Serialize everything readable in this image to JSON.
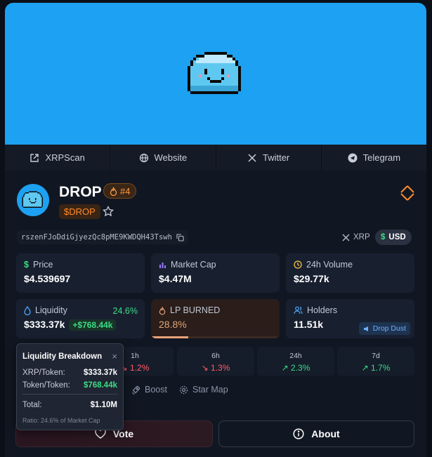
{
  "links": [
    {
      "label": "XRPScan",
      "icon": "external-link-icon"
    },
    {
      "label": "Website",
      "icon": "globe-icon"
    },
    {
      "label": "Twitter",
      "icon": "x-logo-icon"
    },
    {
      "label": "Telegram",
      "icon": "telegram-icon"
    }
  ],
  "token": {
    "name": "DROP",
    "rank": "#4",
    "ticker": "$DROP",
    "address": "rszenFJoDdiGjyezQc8pME9KWDQH43Tswh"
  },
  "currency": {
    "xrp": "XRP",
    "usd": "USD",
    "selected": "USD"
  },
  "stats": {
    "price": {
      "label": "Price",
      "value": "$4.539697"
    },
    "market_cap": {
      "label": "Market Cap",
      "value": "$4.47M"
    },
    "volume": {
      "label": "24h Volume",
      "value": "$29.77k"
    },
    "liquidity": {
      "label": "Liquidity",
      "value": "$333.37k",
      "pct": "24.6%",
      "change": "+$768.44k"
    },
    "lp_burned": {
      "label": "LP BURNED",
      "value": "28.8%",
      "fraction": 0.288
    },
    "holders": {
      "label": "Holders",
      "value": "11.51k",
      "action": "Drop Dust"
    }
  },
  "timeframes": [
    {
      "label": "1h",
      "value": "1.2%",
      "dir": "down"
    },
    {
      "label": "6h",
      "value": "1.3%",
      "dir": "down"
    },
    {
      "label": "24h",
      "value": "2.3%",
      "dir": "up"
    },
    {
      "label": "7d",
      "value": "1.7%",
      "dir": "up"
    }
  ],
  "tabs": {
    "boost": "Boost",
    "star_map": "Star Map"
  },
  "buttons": {
    "vote": "Vote",
    "about": "About"
  },
  "tooltip": {
    "title": "Liquidity Breakdown",
    "close": "×",
    "xrp_token_label": "XRP/Token:",
    "xrp_token_value": "$333.37k",
    "token_token_label": "Token/Token:",
    "token_token_value": "$768.44k",
    "total_label": "Total:",
    "total_value": "$1.10M",
    "ratio": "Ratio: 24.6% of Market Cap"
  }
}
